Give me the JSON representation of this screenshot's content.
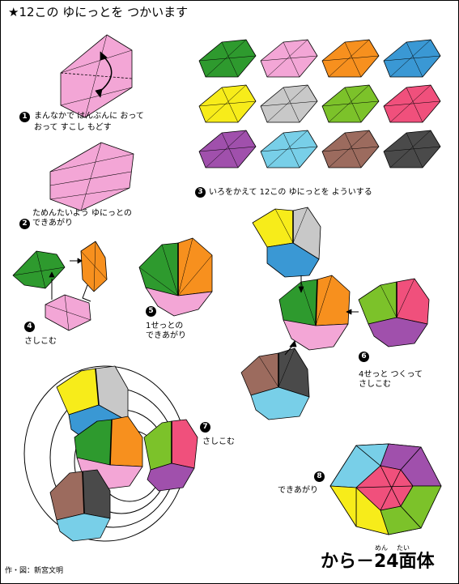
{
  "title": "★12この ゆにっとを つかいます",
  "steps": [
    {
      "num": "1",
      "line1": "まんなかで はんぶんに おって",
      "line2": "おって すこし もどす"
    },
    {
      "num": "2",
      "line1": "ためんたいよう ゆにっとの",
      "line2": "できあがり"
    },
    {
      "num": "3",
      "line1": "いろをかえて 12この ゆにっとを よういする"
    },
    {
      "num": "4",
      "line1": "さしこむ"
    },
    {
      "num": "5",
      "line1": "1せっとの",
      "line2": "できあがり"
    },
    {
      "num": "6",
      "line1": "4せっと つくって",
      "line2": "さしこむ"
    },
    {
      "num": "7",
      "line1": "さしこむ"
    },
    {
      "num": "8",
      "line1": "できあがり"
    }
  ],
  "unit_colors": [
    "#2e9a2e",
    "#f3a6d6",
    "#f7901e",
    "#3a98d4",
    "#f7ec1a",
    "#c8c8c8",
    "#7cc22a",
    "#f0507c",
    "#a050ac",
    "#78cfe8",
    "#9c6b5e",
    "#4a4a4a"
  ],
  "final_title": {
    "main": "から－24面体",
    "ruby_left": "めん",
    "ruby_right": "たい"
  },
  "credit": "作・図：新宮文明"
}
